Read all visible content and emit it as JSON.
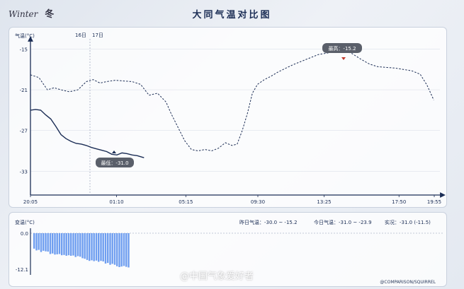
{
  "header": {
    "logo_text": "Winter",
    "season": "冬",
    "title": "大同气温对比图"
  },
  "main_chart": {
    "ylabel": "气温(°C)",
    "day_labels": [
      "16日",
      "17日"
    ],
    "highlight_max": "最高：-15.2",
    "highlight_min": "最低：-31.0"
  },
  "sub_chart": {
    "ylabel": "变温(°C)",
    "yesterday_label": "昨日气温：-30.0 ~ -15.2",
    "today_label": "今日气温：-31.0 ~ -23.9",
    "realtime_label": "实况：-31.0 (-11.5)"
  },
  "footer": {
    "watermark": "@中国气象爱好者",
    "credit": "@COMPARISON/SQUIRREL"
  },
  "colors": {
    "today_line": "#1b2d55",
    "yesterday_line": "#1b2d55",
    "bars": "#6f9ef0",
    "max_marker": "#c0392b"
  },
  "chart_data": [
    {
      "type": "line",
      "ylim": [
        -36.5,
        -13.5
      ],
      "xlim": [
        0,
        23.83
      ],
      "x_unit": "hours since 20:05",
      "x_ticks": [
        {
          "x": 0,
          "label": "20:05"
        },
        {
          "x": 5.08,
          "label": "01:10"
        },
        {
          "x": 9.17,
          "label": "05:15"
        },
        {
          "x": 13.42,
          "label": "09:30"
        },
        {
          "x": 17.33,
          "label": "13:25"
        },
        {
          "x": 21.75,
          "label": "17:50"
        },
        {
          "x": 23.83,
          "label": "19:55"
        }
      ],
      "y_ticks": [
        -15,
        -21,
        -27,
        -33
      ],
      "series": [
        {
          "name": "yesterday",
          "style": "dashed",
          "x": [
            0,
            0.5,
            1,
            1.4,
            1.8,
            2.3,
            2.8,
            3.3,
            3.7,
            4.1,
            4.5,
            5,
            5.5,
            6,
            6.5,
            7,
            7.5,
            8,
            8.3,
            8.7,
            9.1,
            9.5,
            9.9,
            10.3,
            10.7,
            11.1,
            11.5,
            11.9,
            12.2,
            12.5,
            12.8,
            13.1,
            13.4,
            13.8,
            14.2,
            14.6,
            15,
            15.5,
            16,
            16.5,
            17,
            17.5,
            18,
            18.5,
            19,
            19.5,
            20,
            20.5,
            21,
            21.5,
            22,
            22.5,
            23,
            23.4,
            23.8
          ],
          "y": [
            -18.8,
            -19.2,
            -21.0,
            -20.7,
            -21.0,
            -21.3,
            -21.0,
            -19.8,
            -19.5,
            -20.0,
            -19.8,
            -19.6,
            -19.7,
            -19.8,
            -20.2,
            -21.8,
            -21.5,
            -22.8,
            -24.5,
            -26.5,
            -28.5,
            -29.8,
            -30.0,
            -29.8,
            -30.0,
            -29.6,
            -28.8,
            -29.2,
            -29.0,
            -27.0,
            -24.5,
            -21.5,
            -20.2,
            -19.5,
            -19.0,
            -18.4,
            -17.9,
            -17.3,
            -16.8,
            -16.3,
            -15.8,
            -15.6,
            -15.3,
            -15.2,
            -15.7,
            -16.5,
            -17.2,
            -17.6,
            -17.7,
            -17.8,
            -18.0,
            -18.2,
            -18.7,
            -20.3,
            -22.5
          ]
        },
        {
          "name": "today",
          "style": "solid",
          "x": [
            0,
            0.3,
            0.6,
            0.9,
            1.2,
            1.5,
            1.8,
            2.1,
            2.4,
            2.7,
            3.0,
            3.3,
            3.6,
            3.9,
            4.2,
            4.5,
            4.8,
            5.1,
            5.4,
            5.7,
            6.0,
            6.3,
            6.7
          ],
          "y": [
            -24.0,
            -23.9,
            -24.0,
            -24.7,
            -25.3,
            -26.4,
            -27.6,
            -28.2,
            -28.6,
            -28.9,
            -29.0,
            -29.2,
            -29.5,
            -29.7,
            -29.9,
            -30.1,
            -30.5,
            -30.6,
            -30.3,
            -30.4,
            -30.6,
            -30.7,
            -31.0
          ]
        }
      ]
    },
    {
      "type": "bar",
      "ylim": [
        -12.1,
        0
      ],
      "y_ticks": [
        0.0,
        -12.1
      ],
      "values": [
        -5.2,
        -5.8,
        -5.6,
        -6.3,
        -5.9,
        -6.1,
        -6.2,
        -7.0,
        -6.8,
        -7.2,
        -7.1,
        -7.0,
        -7.4,
        -7.3,
        -7.6,
        -7.4,
        -7.6,
        -7.5,
        -8.0,
        -7.7,
        -7.9,
        -8.4,
        -8.6,
        -9.0,
        -9.3,
        -9.1,
        -9.4,
        -9.2,
        -9.6,
        -9.3,
        -9.5,
        -10.2,
        -10.0,
        -10.6,
        -10.3,
        -10.6,
        -11.1,
        -11.4,
        -11.2,
        -11.0,
        -11.3,
        -11.5
      ]
    }
  ]
}
